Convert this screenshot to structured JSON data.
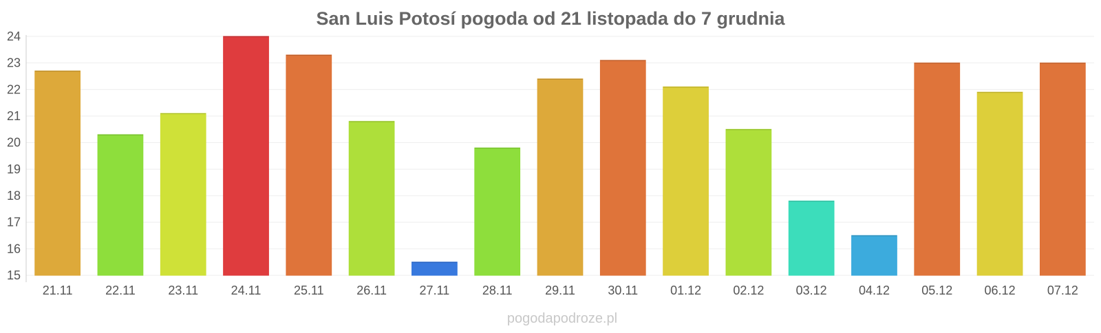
{
  "chart_data": {
    "type": "bar",
    "title": "San Luis Potosí pogoda od 21 listopada do 7 grudnia",
    "xlabel": "",
    "ylabel": "",
    "ylim": [
      15,
      24
    ],
    "yticks": [
      "15",
      "16",
      "17",
      "18",
      "19",
      "20",
      "21",
      "22",
      "23",
      "24"
    ],
    "grid": true,
    "legend": "none",
    "categories": [
      "21.11",
      "22.11",
      "23.11",
      "24.11",
      "25.11",
      "26.11",
      "27.11",
      "28.11",
      "29.11",
      "30.11",
      "01.12",
      "02.12",
      "03.12",
      "04.12",
      "05.12",
      "06.12",
      "07.12"
    ],
    "values": [
      22.7,
      20.3,
      21.1,
      24.0,
      23.3,
      20.8,
      15.5,
      19.8,
      22.4,
      23.1,
      22.1,
      20.5,
      17.8,
      16.5,
      23.0,
      21.9,
      23.0
    ],
    "colors": [
      "#dca634",
      "#8add36",
      "#cde032",
      "#de3638",
      "#de6f34",
      "#abde34",
      "#3275dd",
      "#8add36",
      "#dca634",
      "#de6f34",
      "#dccd34",
      "#abde34",
      "#36dcb9",
      "#36a8dc",
      "#de6f34",
      "#dccd34",
      "#de6f34"
    ]
  },
  "watermark": "pogodapodroze.pl"
}
